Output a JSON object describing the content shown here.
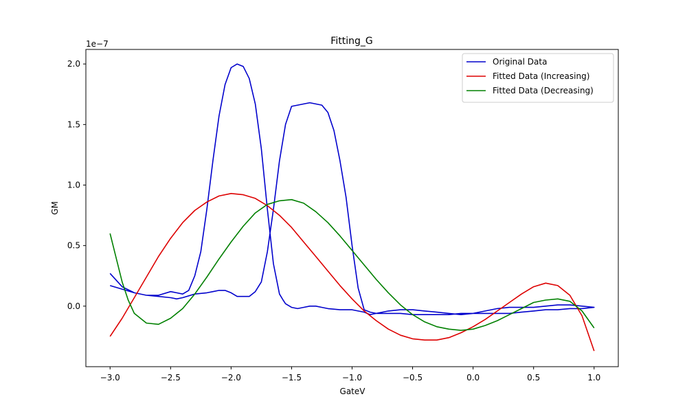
{
  "chart_data": {
    "type": "line",
    "title": "Fitting_G",
    "xlabel": "GateV",
    "ylabel": "GM",
    "y_offset_text": "1e−7",
    "y_scale": 1e-07,
    "xlim": [
      -3.2,
      1.2
    ],
    "ylim": [
      -0.5,
      2.12
    ],
    "x_ticks": [
      -3.0,
      -2.5,
      -2.0,
      -1.5,
      -1.0,
      -0.5,
      0.0,
      0.5,
      1.0
    ],
    "x_tick_labels": [
      "−3.0",
      "−2.5",
      "−2.0",
      "−1.5",
      "−1.0",
      "−0.5",
      "0.0",
      "0.5",
      "1.0"
    ],
    "y_ticks": [
      0.0,
      0.5,
      1.0,
      1.5,
      2.0
    ],
    "y_tick_labels": [
      "0.0",
      "0.5",
      "1.0",
      "1.5",
      "2.0"
    ],
    "grid": false,
    "legend_position": "top-right",
    "series": [
      {
        "name": "Original Data",
        "color": "#0000cc",
        "points": [
          [
            -3.0,
            0.27
          ],
          [
            -2.9,
            0.16
          ],
          [
            -2.8,
            0.11
          ],
          [
            -2.7,
            0.09
          ],
          [
            -2.6,
            0.09
          ],
          [
            -2.5,
            0.12
          ],
          [
            -2.45,
            0.11
          ],
          [
            -2.4,
            0.1
          ],
          [
            -2.35,
            0.13
          ],
          [
            -2.3,
            0.25
          ],
          [
            -2.25,
            0.45
          ],
          [
            -2.2,
            0.8
          ],
          [
            -2.15,
            1.2
          ],
          [
            -2.1,
            1.57
          ],
          [
            -2.05,
            1.83
          ],
          [
            -2.0,
            1.97
          ],
          [
            -1.95,
            2.0
          ],
          [
            -1.9,
            1.98
          ],
          [
            -1.85,
            1.88
          ],
          [
            -1.8,
            1.67
          ],
          [
            -1.75,
            1.3
          ],
          [
            -1.7,
            0.8
          ],
          [
            -1.65,
            0.35
          ],
          [
            -1.6,
            0.1
          ],
          [
            -1.57,
            0.05
          ],
          [
            -1.55,
            0.02
          ],
          [
            -1.5,
            -0.01
          ],
          [
            -1.45,
            -0.02
          ],
          [
            -1.4,
            -0.01
          ],
          [
            -1.35,
            0.0
          ],
          [
            -1.3,
            0.0
          ],
          [
            -1.25,
            -0.01
          ],
          [
            -1.2,
            -0.02
          ],
          [
            -1.1,
            -0.03
          ],
          [
            -1.0,
            -0.03
          ],
          [
            -0.9,
            -0.05
          ],
          [
            -0.85,
            -0.07
          ],
          [
            -0.8,
            -0.06
          ],
          [
            -0.7,
            -0.04
          ],
          [
            -0.6,
            -0.03
          ],
          [
            -0.5,
            -0.03
          ],
          [
            -0.4,
            -0.04
          ],
          [
            -0.3,
            -0.05
          ],
          [
            -0.2,
            -0.06
          ],
          [
            -0.1,
            -0.07
          ],
          [
            0.0,
            -0.06
          ],
          [
            0.1,
            -0.04
          ],
          [
            0.2,
            -0.02
          ],
          [
            0.3,
            -0.01
          ],
          [
            0.4,
            -0.01
          ],
          [
            0.5,
            -0.01
          ],
          [
            0.6,
            0.0
          ],
          [
            0.7,
            0.01
          ],
          [
            0.8,
            0.01
          ],
          [
            0.9,
            0.0
          ],
          [
            1.0,
            -0.01
          ],
          [
            0.9,
            -0.02
          ],
          [
            0.8,
            -0.02
          ],
          [
            0.7,
            -0.03
          ],
          [
            0.6,
            -0.03
          ],
          [
            0.5,
            -0.04
          ],
          [
            0.4,
            -0.05
          ],
          [
            0.3,
            -0.06
          ],
          [
            0.2,
            -0.06
          ],
          [
            0.1,
            -0.06
          ],
          [
            0.0,
            -0.06
          ],
          [
            -0.1,
            -0.06
          ],
          [
            -0.2,
            -0.07
          ],
          [
            -0.3,
            -0.07
          ],
          [
            -0.4,
            -0.07
          ],
          [
            -0.5,
            -0.07
          ],
          [
            -0.6,
            -0.06
          ],
          [
            -0.7,
            -0.06
          ],
          [
            -0.8,
            -0.06
          ],
          [
            -0.85,
            -0.05
          ],
          [
            -0.9,
            -0.03
          ],
          [
            -0.95,
            0.15
          ],
          [
            -1.0,
            0.5
          ],
          [
            -1.05,
            0.9
          ],
          [
            -1.1,
            1.2
          ],
          [
            -1.15,
            1.45
          ],
          [
            -1.2,
            1.6
          ],
          [
            -1.25,
            1.66
          ],
          [
            -1.3,
            1.67
          ],
          [
            -1.35,
            1.68
          ],
          [
            -1.4,
            1.67
          ],
          [
            -1.45,
            1.66
          ],
          [
            -1.5,
            1.65
          ],
          [
            -1.55,
            1.5
          ],
          [
            -1.6,
            1.2
          ],
          [
            -1.65,
            0.8
          ],
          [
            -1.7,
            0.45
          ],
          [
            -1.75,
            0.2
          ],
          [
            -1.8,
            0.12
          ],
          [
            -1.85,
            0.08
          ],
          [
            -1.9,
            0.08
          ],
          [
            -1.95,
            0.08
          ],
          [
            -2.0,
            0.11
          ],
          [
            -2.05,
            0.13
          ],
          [
            -2.1,
            0.13
          ],
          [
            -2.15,
            0.12
          ],
          [
            -2.2,
            0.11
          ],
          [
            -2.3,
            0.1
          ],
          [
            -2.4,
            0.07
          ],
          [
            -2.45,
            0.06
          ],
          [
            -2.5,
            0.07
          ],
          [
            -2.6,
            0.08
          ],
          [
            -2.7,
            0.09
          ],
          [
            -2.8,
            0.11
          ],
          [
            -2.9,
            0.14
          ],
          [
            -3.0,
            0.17
          ]
        ]
      },
      {
        "name": "Fitted Data (Increasing)",
        "color": "#dd0000",
        "points": [
          [
            -3.0,
            -0.25
          ],
          [
            -2.9,
            -0.1
          ],
          [
            -2.8,
            0.07
          ],
          [
            -2.7,
            0.24
          ],
          [
            -2.6,
            0.41
          ],
          [
            -2.5,
            0.56
          ],
          [
            -2.4,
            0.69
          ],
          [
            -2.3,
            0.79
          ],
          [
            -2.2,
            0.86
          ],
          [
            -2.1,
            0.91
          ],
          [
            -2.0,
            0.93
          ],
          [
            -1.9,
            0.92
          ],
          [
            -1.8,
            0.89
          ],
          [
            -1.7,
            0.83
          ],
          [
            -1.6,
            0.75
          ],
          [
            -1.5,
            0.65
          ],
          [
            -1.4,
            0.53
          ],
          [
            -1.3,
            0.41
          ],
          [
            -1.2,
            0.29
          ],
          [
            -1.1,
            0.17
          ],
          [
            -1.0,
            0.06
          ],
          [
            -0.9,
            -0.04
          ],
          [
            -0.8,
            -0.12
          ],
          [
            -0.7,
            -0.19
          ],
          [
            -0.6,
            -0.24
          ],
          [
            -0.5,
            -0.27
          ],
          [
            -0.4,
            -0.28
          ],
          [
            -0.3,
            -0.28
          ],
          [
            -0.2,
            -0.26
          ],
          [
            -0.1,
            -0.22
          ],
          [
            0.0,
            -0.17
          ],
          [
            0.1,
            -0.11
          ],
          [
            0.2,
            -0.04
          ],
          [
            0.3,
            0.03
          ],
          [
            0.4,
            0.1
          ],
          [
            0.5,
            0.16
          ],
          [
            0.6,
            0.19
          ],
          [
            0.7,
            0.17
          ],
          [
            0.8,
            0.09
          ],
          [
            0.9,
            -0.08
          ],
          [
            1.0,
            -0.37
          ]
        ]
      },
      {
        "name": "Fitted Data (Decreasing)",
        "color": "#008000",
        "points": [
          [
            -3.0,
            0.6
          ],
          [
            -2.95,
            0.4
          ],
          [
            -2.9,
            0.2
          ],
          [
            -2.85,
            0.05
          ],
          [
            -2.8,
            -0.06
          ],
          [
            -2.7,
            -0.14
          ],
          [
            -2.6,
            -0.15
          ],
          [
            -2.5,
            -0.1
          ],
          [
            -2.4,
            -0.02
          ],
          [
            -2.3,
            0.1
          ],
          [
            -2.2,
            0.24
          ],
          [
            -2.1,
            0.39
          ],
          [
            -2.0,
            0.53
          ],
          [
            -1.9,
            0.66
          ],
          [
            -1.8,
            0.77
          ],
          [
            -1.7,
            0.84
          ],
          [
            -1.6,
            0.87
          ],
          [
            -1.5,
            0.88
          ],
          [
            -1.4,
            0.85
          ],
          [
            -1.3,
            0.78
          ],
          [
            -1.2,
            0.69
          ],
          [
            -1.1,
            0.58
          ],
          [
            -1.0,
            0.46
          ],
          [
            -0.9,
            0.34
          ],
          [
            -0.8,
            0.22
          ],
          [
            -0.7,
            0.11
          ],
          [
            -0.6,
            0.01
          ],
          [
            -0.5,
            -0.07
          ],
          [
            -0.4,
            -0.13
          ],
          [
            -0.3,
            -0.17
          ],
          [
            -0.2,
            -0.19
          ],
          [
            -0.1,
            -0.2
          ],
          [
            0.0,
            -0.19
          ],
          [
            0.1,
            -0.16
          ],
          [
            0.2,
            -0.12
          ],
          [
            0.3,
            -0.07
          ],
          [
            0.4,
            -0.02
          ],
          [
            0.5,
            0.03
          ],
          [
            0.6,
            0.05
          ],
          [
            0.7,
            0.06
          ],
          [
            0.8,
            0.04
          ],
          [
            0.9,
            -0.04
          ],
          [
            1.0,
            -0.18
          ]
        ]
      }
    ]
  }
}
